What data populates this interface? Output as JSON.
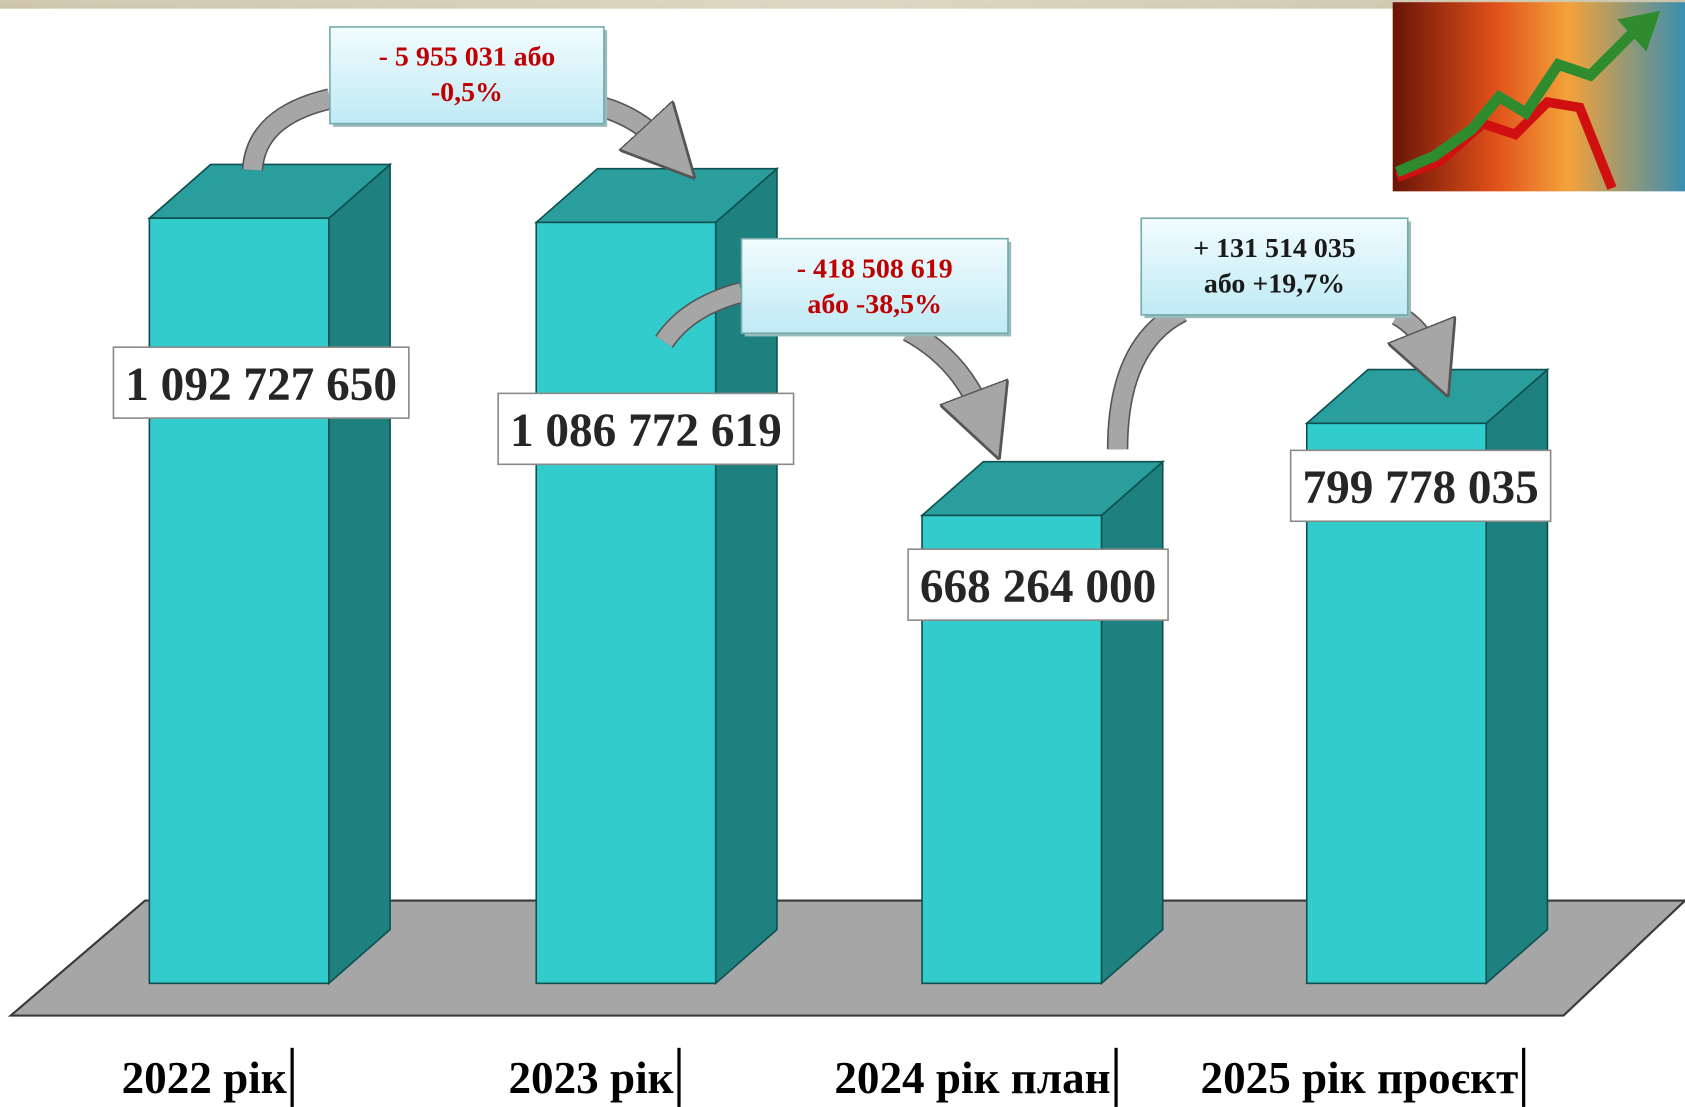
{
  "chart_data": {
    "type": "bar3d",
    "categories": [
      "2022 рік",
      "2023 рік",
      "2024 рік план",
      "2025 рік проєкт"
    ],
    "values": [
      1092727650,
      1086772619,
      668264000,
      799778035
    ],
    "value_labels": [
      "1 092 727 650",
      "1 086 772 619",
      "668 264 000",
      "799 778 035"
    ],
    "color": "#33cccc",
    "annotations": [
      {
        "lines": [
          "- 5 955 031 або",
          "-0,5%"
        ],
        "color": "#c00000"
      },
      {
        "lines": [
          "- 418 508 619",
          "або -38,5%"
        ],
        "color": "#c00000"
      },
      {
        "lines": [
          "+ 131 514 035",
          "або +19,7%"
        ],
        "color": "#1a1a1a"
      }
    ]
  }
}
